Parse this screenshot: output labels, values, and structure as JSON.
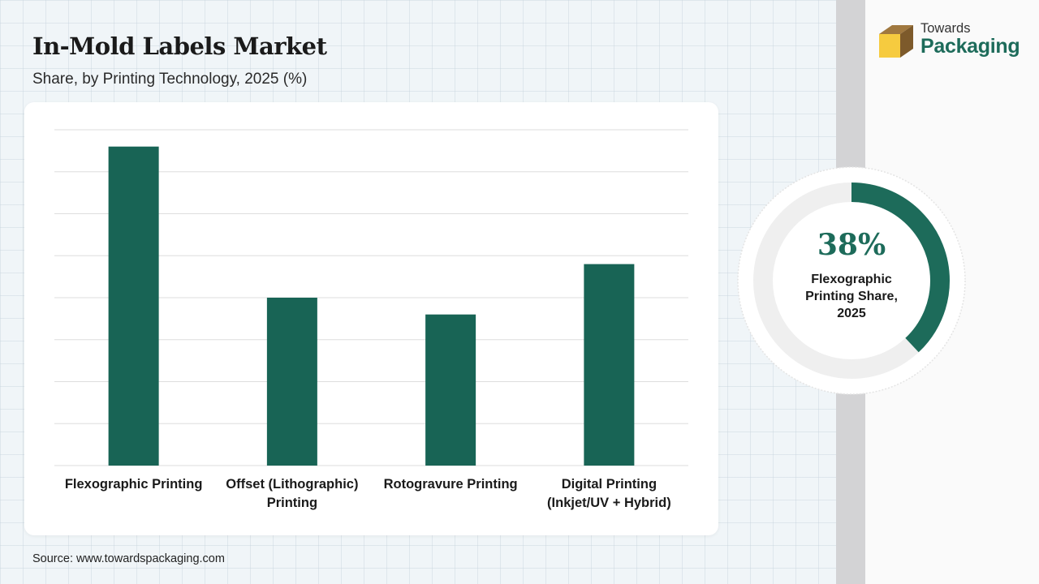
{
  "header": {
    "title": "In-Mold Labels Market",
    "subtitle": "Share, by Printing Technology, 2025 (%)"
  },
  "brand": {
    "name_top": "Towards",
    "name_main": "Packaging",
    "accent_color": "#1d6b5a",
    "logo_icon": "box-icon"
  },
  "chart_data": {
    "type": "bar",
    "categories": [
      "Flexographic Printing",
      "Offset (Lithographic) Printing",
      "Rotogravure Printing",
      "Digital Printing (Inkjet/UV + Hybrid)"
    ],
    "category_lines": [
      [
        "Flexographic Printing"
      ],
      [
        "Offset (Lithographic)",
        "Printing"
      ],
      [
        "Rotogravure Printing"
      ],
      [
        "Digital Printing",
        "(Inkjet/UV + Hybrid)"
      ]
    ],
    "values": [
      38,
      20,
      18,
      24
    ],
    "ylim": [
      0,
      40
    ],
    "gridlines": 8,
    "bar_color": "#186455",
    "title": "",
    "xlabel": "",
    "ylabel": ""
  },
  "highlight": {
    "value": "38%",
    "fraction": 0.38,
    "caption_lines": [
      "Flexographic",
      "Printing Share,",
      "2025"
    ],
    "fill_color": "#1d6b5a",
    "track_color": "#efefef"
  },
  "footer": {
    "source": "Source: www.towardspackaging.com"
  }
}
